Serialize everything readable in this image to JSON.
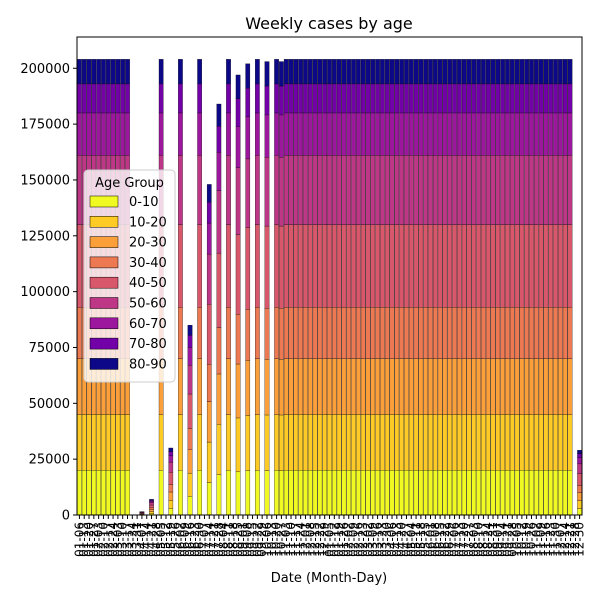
{
  "chart_data": {
    "type": "bar",
    "stacked": true,
    "title": "Weekly cases by age",
    "xlabel": "Date (Month-Day)",
    "ylabel": "",
    "ylim": [
      0,
      214000
    ],
    "yticks": [
      0,
      25000,
      50000,
      75000,
      100000,
      125000,
      150000,
      175000,
      200000
    ],
    "ytick_labels": [
      "0",
      "25000",
      "50000",
      "75000",
      "100000",
      "125000",
      "150000",
      "175000",
      "200000"
    ],
    "legend": {
      "title": "Age Group",
      "position": "center-left"
    },
    "grid": false,
    "categories": [
      "01-06",
      "01-13",
      "01-20",
      "01-27",
      "02-03",
      "02-10",
      "02-17",
      "02-24",
      "03-03",
      "03-10",
      "03-17",
      "03-24",
      "03-31",
      "04-07",
      "04-14",
      "04-21",
      "04-28",
      "05-05",
      "05-12",
      "05-19",
      "05-26",
      "06-02",
      "06-09",
      "06-16",
      "06-23",
      "06-30",
      "07-07",
      "07-14",
      "07-21",
      "07-28",
      "08-04",
      "08-11",
      "08-18",
      "08-25",
      "09-01",
      "09-08",
      "09-15",
      "09-22",
      "09-29",
      "10-06",
      "10-13",
      "10-20",
      "10-27",
      "11-03",
      "11-10",
      "11-17",
      "11-24",
      "12-01",
      "12-08",
      "12-15",
      "12-22",
      "12-29",
      "01-05",
      "01-12",
      "01-19",
      "01-26",
      "02-02",
      "02-09",
      "02-16",
      "02-23",
      "03-02",
      "03-09",
      "03-16",
      "03-23",
      "03-30",
      "04-06",
      "04-13",
      "04-20",
      "04-27",
      "05-04",
      "05-11",
      "05-18",
      "05-25",
      "06-01",
      "06-08",
      "06-15",
      "06-22",
      "06-29",
      "07-06",
      "07-13",
      "07-20",
      "07-27",
      "08-03",
      "08-10",
      "08-17",
      "08-24",
      "08-31",
      "09-07",
      "09-14",
      "09-21",
      "09-28",
      "10-05",
      "10-12",
      "10-19",
      "10-26",
      "11-02",
      "11-09",
      "11-16",
      "11-23",
      "11-30",
      "12-07",
      "12-14",
      "12-21",
      "12-28",
      "12-30"
    ],
    "totals": [
      204000,
      204000,
      204000,
      204000,
      204000,
      204000,
      204000,
      204000,
      204000,
      204000,
      204000,
      0,
      0,
      1500,
      0,
      7000,
      0,
      204000,
      0,
      30000,
      0,
      204000,
      0,
      85000,
      0,
      204000,
      0,
      148000,
      0,
      184000,
      0,
      204000,
      0,
      197000,
      0,
      202000,
      0,
      204000,
      0,
      203000,
      0,
      204000,
      203000,
      204000,
      204000,
      204000,
      204000,
      204000,
      204000,
      204000,
      204000,
      204000,
      204000,
      204000,
      204000,
      204000,
      204000,
      204000,
      204000,
      204000,
      204000,
      204000,
      204000,
      204000,
      204000,
      204000,
      204000,
      204000,
      204000,
      204000,
      204000,
      204000,
      204000,
      204000,
      204000,
      204000,
      204000,
      204000,
      204000,
      204000,
      204000,
      204000,
      204000,
      204000,
      204000,
      204000,
      204000,
      204000,
      204000,
      204000,
      204000,
      204000,
      204000,
      204000,
      204000,
      204000,
      204000,
      204000,
      204000,
      204000,
      204000,
      204000,
      204000,
      0,
      29000,
      0,
      204000,
      204000
    ],
    "series": [
      {
        "name": "0-10",
        "color": "#f0f921",
        "value": 20000
      },
      {
        "name": "10-20",
        "color": "#fdca26",
        "value": 25000
      },
      {
        "name": "20-30",
        "color": "#fb9f3a",
        "value": 25000
      },
      {
        "name": "30-40",
        "color": "#ed7953",
        "value": 23000
      },
      {
        "name": "40-50",
        "color": "#d8576b",
        "value": 37000
      },
      {
        "name": "50-60",
        "color": "#bd3786",
        "value": 31000
      },
      {
        "name": "60-70",
        "color": "#9c179e",
        "value": 19000
      },
      {
        "name": "70-80",
        "color": "#7201a8",
        "value": 13000
      },
      {
        "name": "80-90",
        "color": "#0d0887",
        "value": 11000
      }
    ]
  }
}
